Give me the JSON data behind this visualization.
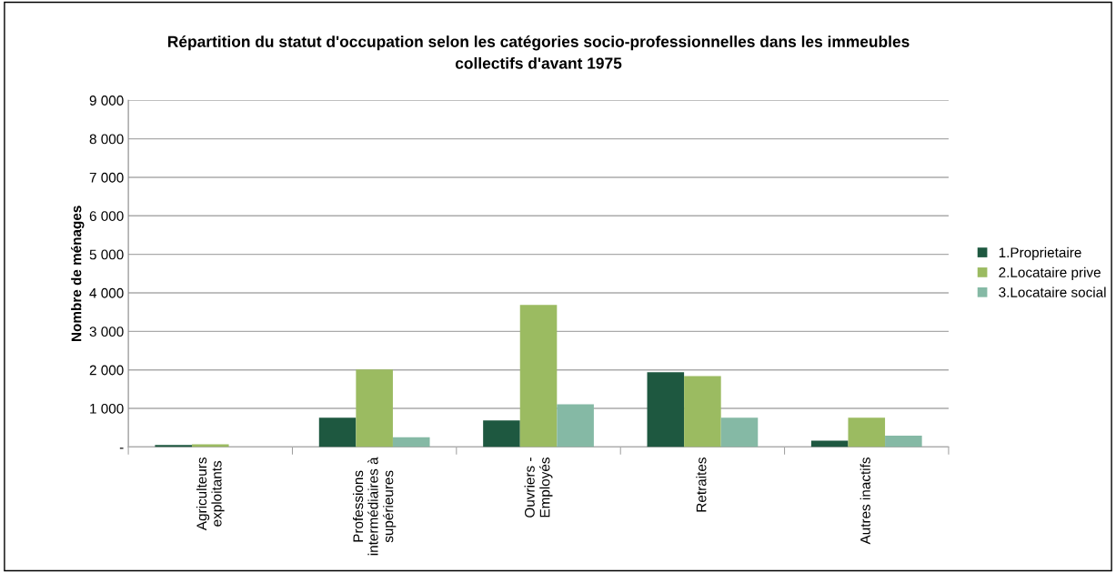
{
  "chart_data": {
    "type": "bar",
    "title": "Répartition du statut d'occupation selon les catégories socio-professionnelles dans les immeubles\ncollectifs d'avant 1975",
    "ylabel": "Nombre de ménages",
    "categories": [
      "Agriculteurs\nexploitants",
      "Professions\nintermédiaires à\nsupérieures",
      "Ouvriers -\nEmployés",
      "Retraites",
      "Autres inactifs"
    ],
    "series": [
      {
        "name": "1.Proprietaire",
        "color": "#1e5840",
        "values": [
          50,
          760,
          690,
          1940,
          160
        ]
      },
      {
        "name": "2.Locataire prive",
        "color": "#9bbb61",
        "values": [
          70,
          2010,
          3690,
          1840,
          760
        ]
      },
      {
        "name": "3.Locataire social",
        "color": "#85b9a5",
        "values": [
          0,
          250,
          1110,
          760,
          290
        ]
      }
    ],
    "ylim": [
      0,
      9000
    ],
    "yticks": [
      {
        "value": 0,
        "label": "-"
      },
      {
        "value": 1000,
        "label": "1 000"
      },
      {
        "value": 2000,
        "label": "2 000"
      },
      {
        "value": 3000,
        "label": "3 000"
      },
      {
        "value": 4000,
        "label": "4 000"
      },
      {
        "value": 5000,
        "label": "5 000"
      },
      {
        "value": 6000,
        "label": "6 000"
      },
      {
        "value": 7000,
        "label": "7 000"
      },
      {
        "value": 8000,
        "label": "8 000"
      },
      {
        "value": 9000,
        "label": "9 000"
      }
    ],
    "grid": "y",
    "legend": "right"
  }
}
